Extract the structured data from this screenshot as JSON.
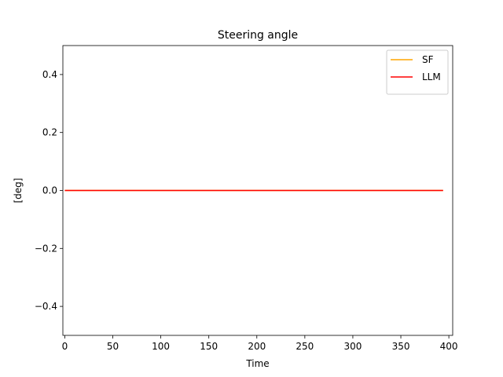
{
  "chart_data": {
    "type": "line",
    "title": "Steering angle",
    "xlabel": "Time",
    "ylabel": "[deg]",
    "xlim": [
      -2,
      404
    ],
    "ylim": [
      -0.5,
      0.5
    ],
    "xticks": [
      0,
      50,
      100,
      150,
      200,
      250,
      300,
      350,
      400
    ],
    "xtick_labels": [
      "0",
      "50",
      "100",
      "150",
      "200",
      "250",
      "300",
      "350",
      "400"
    ],
    "yticks": [
      -0.4,
      -0.2,
      0.0,
      0.2,
      0.4
    ],
    "ytick_labels": [
      "−0.4",
      "−0.2",
      "0.0",
      "0.2",
      "0.4"
    ],
    "grid": false,
    "legend_position": "top-right",
    "series": [
      {
        "name": "SF",
        "color": "#ffa500",
        "x": [
          0,
          394
        ],
        "y": [
          0,
          0
        ]
      },
      {
        "name": "LLM",
        "color": "#ff0000",
        "x": [
          0,
          394
        ],
        "y": [
          0,
          0
        ]
      }
    ]
  }
}
